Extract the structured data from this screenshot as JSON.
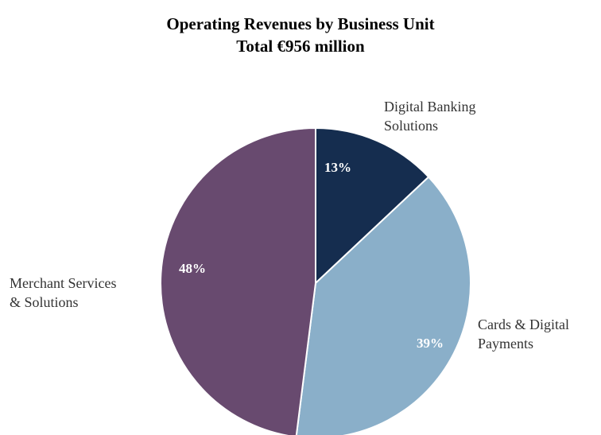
{
  "chart_data": {
    "type": "pie",
    "title": "Operating Revenues by Business Unit",
    "subtitle": "Total €956 million",
    "categories": [
      "Digital Banking Solutions",
      "Cards & Digital Payments",
      "Merchant Services & Solutions"
    ],
    "label_lines": [
      [
        "Digital Banking",
        "Solutions"
      ],
      [
        "Cards & Digital",
        "Payments"
      ],
      [
        "Merchant Services",
        "& Solutions"
      ]
    ],
    "values": [
      13,
      39,
      48
    ],
    "value_labels": [
      "13%",
      "39%",
      "48%"
    ],
    "colors": [
      "#152d4f",
      "#8aafc9",
      "#684a6f"
    ],
    "value_label_colors": [
      "#ffffff",
      "#ffffff",
      "#ffffff"
    ],
    "start": "12 o'clock",
    "direction": "clockwise"
  }
}
